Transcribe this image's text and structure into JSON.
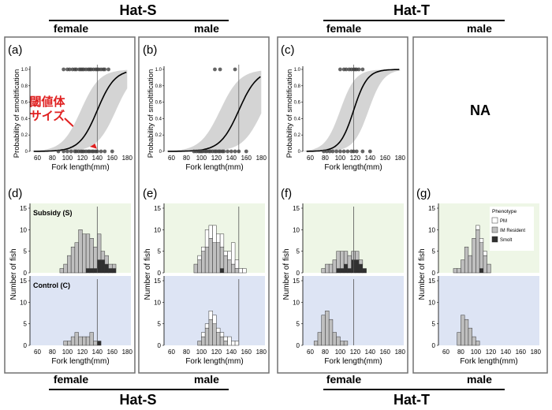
{
  "header": {
    "hat_s": "Hat-S",
    "hat_t": "Hat-T",
    "female": "female",
    "male": "male"
  },
  "na_label": "NA",
  "annotation": {
    "line1": "閾値体",
    "line2": "サイズ",
    "color": "#e02020"
  },
  "colors": {
    "pm": "#ffffff",
    "im_resident": "#bfbfbf",
    "smolt": "#303030",
    "subsidy_bg": "#eef6e6",
    "control_bg": "#dde4f4",
    "ci_band": "#d4d4d4",
    "panel_border": "#707070"
  },
  "legend": {
    "title": "Phenotype",
    "items": [
      "PM",
      "IM Resident",
      "Smolt"
    ]
  },
  "chart_data": [
    {
      "panel": "(a)",
      "type": "line",
      "group": "Hat-S female",
      "xlabel": "Fork length(mm)",
      "ylabel": "Probability of smoltification",
      "xlim": [
        50,
        185
      ],
      "ylim": [
        0,
        1
      ],
      "xticks": [
        60,
        80,
        100,
        120,
        140,
        160,
        180
      ],
      "yticks": [
        "0",
        "0.2",
        "0.4",
        "0.6",
        "0.8",
        "1.0"
      ],
      "threshold": 140,
      "curve": {
        "midpoint": 140,
        "slope": 0.085
      },
      "ci": {
        "upper_midpoint": 118,
        "lower_midpoint": 165,
        "slope": 0.08
      },
      "points_at_1": [
        95,
        100,
        103,
        107,
        110,
        112,
        116,
        118,
        120,
        122,
        125,
        128,
        130,
        132,
        135,
        138,
        140,
        142,
        145,
        148,
        150,
        155
      ],
      "points_at_0": [
        88,
        95,
        100,
        105,
        110,
        112,
        115,
        118,
        120,
        122,
        125,
        128,
        130,
        133,
        135,
        138,
        140,
        145,
        150,
        160
      ]
    },
    {
      "panel": "(b)",
      "type": "line",
      "group": "Hat-S male",
      "xlabel": "Fork length(mm)",
      "ylabel": "Probability of smoltification",
      "xlim": [
        50,
        185
      ],
      "ylim": [
        0,
        1
      ],
      "xticks": [
        60,
        80,
        100,
        120,
        140,
        160,
        180
      ],
      "yticks": [
        "0",
        "0.2",
        "0.4",
        "0.6",
        "0.8",
        "1.0"
      ],
      "threshold": 150,
      "curve": {
        "midpoint": 150,
        "slope": 0.08
      },
      "ci": {
        "upper_midpoint": 125,
        "lower_midpoint": 182,
        "slope": 0.075
      },
      "points_at_1": [
        118,
        125,
        145
      ],
      "points_at_0": [
        90,
        93,
        96,
        98,
        100,
        102,
        105,
        107,
        110,
        112,
        115,
        118,
        120,
        123,
        125,
        128,
        130,
        135,
        140,
        145,
        150,
        160
      ]
    },
    {
      "panel": "(c)",
      "type": "line",
      "group": "Hat-T female",
      "xlabel": "Fork length(mm)",
      "ylabel": "Probability of smoltification",
      "xlim": [
        50,
        185
      ],
      "ylim": [
        0,
        1
      ],
      "xticks": [
        60,
        80,
        100,
        120,
        140,
        160,
        180
      ],
      "yticks": [
        "0",
        "0.2",
        "0.4",
        "0.6",
        "0.8",
        "1.0"
      ],
      "threshold": 118,
      "curve": {
        "midpoint": 118,
        "slope": 0.11
      },
      "ci": {
        "upper_midpoint": 100,
        "lower_midpoint": 138,
        "slope": 0.1
      },
      "points_at_1": [
        100,
        105,
        108,
        112,
        115,
        118,
        120,
        122,
        125,
        130
      ],
      "points_at_0": [
        78,
        82,
        86,
        90,
        95,
        100,
        105,
        110,
        115,
        118,
        122,
        130,
        140
      ]
    },
    {
      "panel": "(d)",
      "type": "bar",
      "group": "Hat-S female",
      "xlabel": "Fork length(mm)",
      "ylabel": "Number of fish",
      "xlim": [
        50,
        185
      ],
      "xticks": [
        60,
        80,
        100,
        120,
        140,
        160,
        180
      ],
      "yticks": [
        0,
        5,
        10,
        15
      ],
      "threshold": 140,
      "bin_width": 5,
      "subsidy": {
        "label": "Subsidy (S)",
        "bins": [
          90,
          95,
          100,
          105,
          110,
          115,
          120,
          125,
          130,
          135,
          140,
          145,
          150,
          155,
          160
        ],
        "im_resident": [
          1,
          2,
          4,
          6,
          7,
          10,
          9,
          8,
          7,
          5,
          6,
          2,
          2,
          1,
          1
        ],
        "smolt": [
          0,
          0,
          0,
          0,
          0,
          0,
          0,
          1,
          1,
          1,
          3,
          3,
          2,
          1,
          1
        ],
        "pm": [
          0,
          0,
          0,
          0,
          0,
          0,
          0,
          0,
          0,
          0,
          0,
          0,
          0,
          0,
          0
        ]
      },
      "control": {
        "label": "Control (C)",
        "bins": [
          90,
          95,
          100,
          105,
          110,
          115,
          120,
          125,
          130,
          135,
          140
        ],
        "im_resident": [
          0,
          1,
          1,
          2,
          3,
          2,
          2,
          2,
          3,
          1,
          0
        ],
        "smolt": [
          0,
          0,
          0,
          0,
          0,
          0,
          0,
          0,
          0,
          0,
          1
        ],
        "pm": [
          0,
          0,
          0,
          0,
          0,
          0,
          0,
          0,
          0,
          0,
          0
        ]
      }
    },
    {
      "panel": "(e)",
      "type": "bar",
      "group": "Hat-S male",
      "xlabel": "Fork length(mm)",
      "ylabel": "Number of fish",
      "xlim": [
        50,
        185
      ],
      "xticks": [
        60,
        80,
        100,
        120,
        140,
        160,
        180
      ],
      "yticks": [
        0,
        5,
        10,
        15
      ],
      "threshold": 150,
      "bin_width": 5,
      "subsidy": {
        "label": "",
        "bins": [
          90,
          95,
          100,
          105,
          110,
          115,
          120,
          125,
          130,
          135,
          140,
          145,
          150,
          155
        ],
        "im_resident": [
          2,
          3,
          5,
          6,
          8,
          7,
          7,
          5,
          4,
          3,
          2,
          1,
          0,
          0
        ],
        "smolt": [
          0,
          0,
          0,
          0,
          0,
          0,
          0,
          1,
          0,
          0,
          0,
          0,
          0,
          0
        ],
        "pm": [
          0,
          1,
          1,
          4,
          3,
          4,
          2,
          3,
          1,
          2,
          5,
          2,
          1,
          1
        ]
      },
      "control": {
        "label": "",
        "bins": [
          95,
          100,
          105,
          110,
          115,
          120,
          125,
          130,
          135,
          140,
          145
        ],
        "im_resident": [
          1,
          2,
          4,
          6,
          5,
          3,
          2,
          1,
          0,
          0,
          0
        ],
        "smolt": [
          0,
          0,
          0,
          0,
          0,
          0,
          0,
          0,
          0,
          0,
          0
        ],
        "pm": [
          0,
          1,
          1,
          2,
          2,
          1,
          1,
          1,
          2,
          1,
          1
        ]
      }
    },
    {
      "panel": "(f)",
      "type": "bar",
      "group": "Hat-T female",
      "xlabel": "Fork length(mm)",
      "ylabel": "Number of fish",
      "xlim": [
        50,
        185
      ],
      "xticks": [
        60,
        80,
        100,
        120,
        140,
        160,
        180
      ],
      "yticks": [
        0,
        5,
        10,
        15
      ],
      "threshold": 118,
      "bin_width": 5,
      "subsidy": {
        "label": "",
        "bins": [
          75,
          80,
          85,
          90,
          95,
          100,
          105,
          110,
          115,
          120,
          125,
          130
        ],
        "im_resident": [
          1,
          2,
          2,
          3,
          4,
          4,
          3,
          3,
          2,
          2,
          1,
          0
        ],
        "smolt": [
          0,
          0,
          0,
          0,
          1,
          1,
          2,
          1,
          3,
          3,
          2,
          1
        ],
        "pm": [
          0,
          0,
          0,
          0,
          0,
          0,
          0,
          0,
          0,
          0,
          0,
          0
        ]
      },
      "control": {
        "label": "",
        "bins": [
          65,
          70,
          75,
          80,
          85,
          90,
          95,
          100,
          105
        ],
        "im_resident": [
          1,
          3,
          7,
          8,
          6,
          3,
          2,
          1,
          1
        ],
        "smolt": [
          0,
          0,
          0,
          0,
          0,
          0,
          0,
          0,
          0
        ],
        "pm": [
          0,
          0,
          0,
          0,
          0,
          0,
          0,
          0,
          0
        ]
      }
    },
    {
      "panel": "(g)",
      "type": "bar",
      "group": "Hat-T male",
      "xlabel": "Fork length(mm)",
      "ylabel": "Number of fish",
      "xlim": [
        50,
        185
      ],
      "xticks": [
        60,
        80,
        100,
        120,
        140,
        160,
        180
      ],
      "yticks": [
        0,
        5,
        10,
        15
      ],
      "threshold": null,
      "bin_width": 5,
      "subsidy": {
        "label": "",
        "bins": [
          70,
          75,
          80,
          85,
          90,
          95,
          100,
          105,
          110,
          115
        ],
        "im_resident": [
          1,
          1,
          3,
          6,
          4,
          8,
          10,
          6,
          4,
          2
        ],
        "smolt": [
          0,
          0,
          0,
          0,
          0,
          0,
          0,
          1,
          0,
          0
        ],
        "pm": [
          0,
          0,
          0,
          0,
          0,
          0,
          1,
          1,
          1,
          0
        ]
      },
      "control": {
        "label": "",
        "bins": [
          75,
          80,
          85,
          90,
          95,
          100
        ],
        "im_resident": [
          3,
          7,
          6,
          4,
          2,
          1
        ],
        "smolt": [
          0,
          0,
          0,
          0,
          0,
          0
        ],
        "pm": [
          0,
          0,
          0,
          0,
          0,
          0
        ]
      }
    }
  ]
}
